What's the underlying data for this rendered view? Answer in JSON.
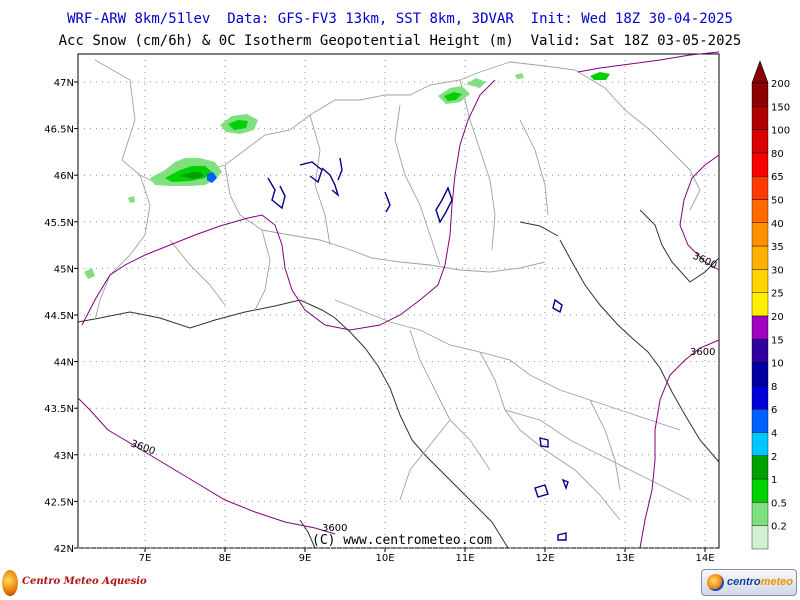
{
  "header": {
    "line1": "WRF-ARW 8km/51lev  Data: GFS-FV3 13km, SST 8km, 3DVAR  Init: Wed 18Z 30-04-2025",
    "line2": "Acc Snow (cm/6h) & 0C Isotherm Geopotential Height (m)  Valid: Sat 18Z 03-05-2025"
  },
  "map": {
    "lat_labels": [
      "47N",
      "46.5N",
      "46N",
      "45.5N",
      "45N",
      "44.5N",
      "44N",
      "43.5N",
      "43N",
      "42.5N",
      "42N"
    ],
    "lon_labels": [
      "7E",
      "8E",
      "9E",
      "10E",
      "11E",
      "12E",
      "13E",
      "14E"
    ],
    "contour_labels": [
      "3600",
      "3600",
      "3600",
      "3600"
    ],
    "copyright": "(C) www.centrometeo.com",
    "colors": {
      "contour": "#800080",
      "lakes": "#00008b",
      "borders": "#a0a0a0",
      "coast": "#303030"
    }
  },
  "colorbar": {
    "labels": [
      "200",
      "150",
      "100",
      "80",
      "65",
      "50",
      "40",
      "35",
      "30",
      "25",
      "20",
      "15",
      "10",
      "8",
      "6",
      "4",
      "2",
      "1",
      "0.5",
      "0.2"
    ],
    "colors": [
      "#8b0000",
      "#b00000",
      "#d80000",
      "#f80000",
      "#ff3a00",
      "#ff6a00",
      "#ff9000",
      "#ffb000",
      "#ffd200",
      "#ffee00",
      "#a000c0",
      "#3000a0",
      "#0000a0",
      "#0000d8",
      "#0060ff",
      "#00c8ff",
      "#00a000",
      "#00d000",
      "#80e080",
      "#d0f0d0"
    ]
  },
  "logos": {
    "left_text": "Centro Meteo Aquesio",
    "right_text_a": "centro",
    "right_text_b": "meteo"
  }
}
